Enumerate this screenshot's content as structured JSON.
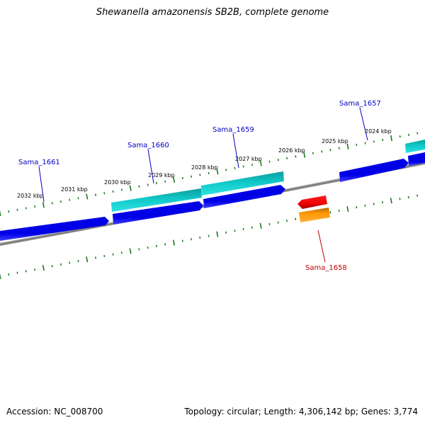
{
  "title": "Shewanella amazonensis SB2B, complete genome",
  "footer": {
    "accession": "Accession: NC_008700",
    "summary": "Topology: circular; Length: 4,306,142 bp; Genes: 3,774"
  },
  "colors": {
    "backbone": "#808080",
    "ticks": "#1b7a1b",
    "forward_gene": "#0000e0",
    "forward_gene_highlight": "#5050ff",
    "cds_feature": "#10c8c8",
    "cds_feature_dark": "#0a8f8f",
    "reverse_gene": "#ff0000",
    "reverse_gene_dark": "#b00000",
    "reverse_cds": "#ff9900",
    "reverse_cds_dark": "#c06a00",
    "forward_label": "#0000c0",
    "reverse_label": "#c00000"
  },
  "scale_labels": [
    {
      "text": "2032 kbp"
    },
    {
      "text": "2031 kbp"
    },
    {
      "text": "2030 kbp"
    },
    {
      "text": "2029 kbp"
    },
    {
      "text": "2028 kbp"
    },
    {
      "text": "2027 kbp"
    },
    {
      "text": "2026 kbp"
    },
    {
      "text": "2025 kbp"
    },
    {
      "text": "2024 kbp"
    }
  ],
  "gene_labels": [
    {
      "text": "Sama_1661",
      "strand": "forward"
    },
    {
      "text": "Sama_1660",
      "strand": "forward"
    },
    {
      "text": "Sama_1659",
      "strand": "forward"
    },
    {
      "text": "Sama_1657",
      "strand": "forward"
    },
    {
      "text": "Sama_1658",
      "strand": "reverse"
    }
  ]
}
